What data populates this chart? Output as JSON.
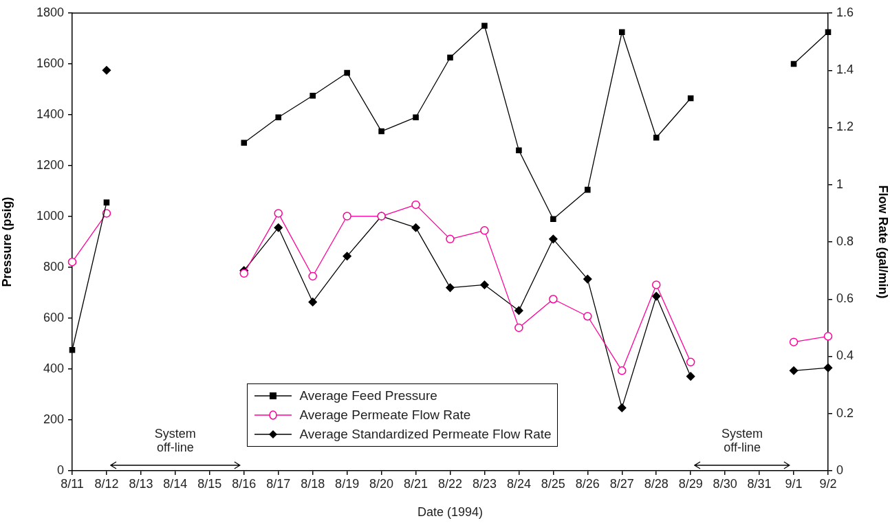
{
  "chart_data": {
    "type": "line",
    "xlabel": "Date (1994)",
    "ylabel": "Pressure (psig)",
    "y2label": "Flow Rate (gal/min)",
    "categories": [
      "8/11",
      "8/12",
      "8/13",
      "8/14",
      "8/15",
      "8/16",
      "8/17",
      "8/18",
      "8/19",
      "8/20",
      "8/21",
      "8/22",
      "8/23",
      "8/24",
      "8/25",
      "8/26",
      "8/27",
      "8/28",
      "8/29",
      "8/30",
      "8/31",
      "9/1",
      "9/2"
    ],
    "series": [
      {
        "name": "Average Feed Pressure",
        "color": "#000000",
        "marker": "square",
        "values": [
          475,
          1055,
          null,
          null,
          null,
          1290,
          1390,
          1475,
          1565,
          1335,
          1390,
          1625,
          1750,
          1260,
          990,
          1105,
          1725,
          1310,
          1465,
          null,
          null,
          1600,
          1725
        ]
      },
      {
        "name": "Average Permeate Flow Rate",
        "color": "#ff0099",
        "marker": "circle",
        "axis": "y2",
        "values": [
          0.73,
          0.9,
          null,
          null,
          null,
          0.69,
          0.9,
          0.68,
          0.89,
          0.89,
          0.93,
          0.81,
          0.84,
          0.5,
          0.6,
          0.54,
          0.35,
          0.65,
          0.38,
          null,
          null,
          0.45,
          0.47
        ]
      },
      {
        "name": "Average Standardized Permeate Flow Rate",
        "color": "#000000",
        "marker": "diamond",
        "axis": "y2",
        "values": [
          null,
          1.4,
          null,
          null,
          null,
          0.7,
          0.85,
          0.59,
          0.75,
          0.89,
          0.85,
          0.64,
          0.65,
          0.56,
          0.81,
          0.67,
          0.22,
          0.61,
          0.33,
          null,
          null,
          0.35,
          0.36
        ]
      }
    ],
    "ylim": [
      0,
      1800
    ],
    "yticks": [
      0,
      200,
      400,
      600,
      800,
      1000,
      1200,
      1400,
      1600,
      1800
    ],
    "y2lim": [
      0,
      1.6
    ],
    "y2ticks": [
      0,
      0.2,
      0.4,
      0.6,
      0.8,
      1,
      1.2,
      1.4,
      1.6
    ],
    "grid": false,
    "legend": "bottom",
    "annotations": [
      "System\noff-line",
      "System\noff-line"
    ]
  }
}
